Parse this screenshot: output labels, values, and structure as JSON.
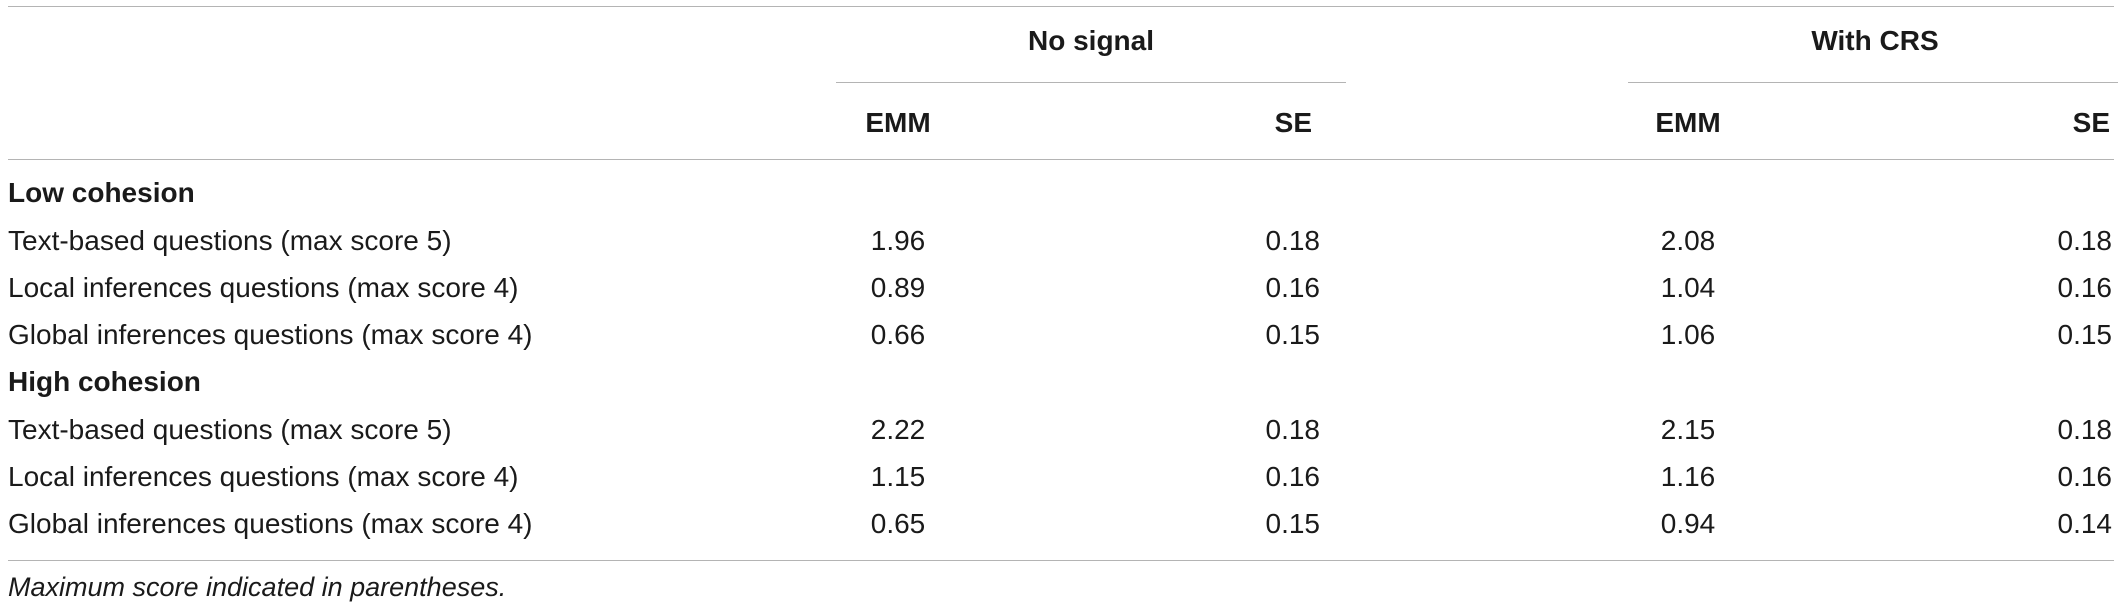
{
  "table": {
    "group_headers": [
      "No signal",
      "With CRS"
    ],
    "sub_headers": [
      "EMM",
      "SE",
      "EMM",
      "SE"
    ],
    "sections": [
      {
        "title": "Low cohesion",
        "rows": [
          {
            "label": "Text-based questions (max score 5)",
            "values": [
              "1.96",
              "0.18",
              "2.08",
              "0.18"
            ]
          },
          {
            "label": "Local inferences questions (max score 4)",
            "values": [
              "0.89",
              "0.16",
              "1.04",
              "0.16"
            ]
          },
          {
            "label": "Global inferences questions (max score 4)",
            "values": [
              "0.66",
              "0.15",
              "1.06",
              "0.15"
            ]
          }
        ]
      },
      {
        "title": "High cohesion",
        "rows": [
          {
            "label": "Text-based questions (max score 5)",
            "values": [
              "2.22",
              "0.18",
              "2.15",
              "0.18"
            ]
          },
          {
            "label": "Local inferences questions (max score 4)",
            "values": [
              "1.15",
              "0.16",
              "1.16",
              "0.16"
            ]
          },
          {
            "label": "Global inferences questions (max score 4)",
            "values": [
              "0.65",
              "0.15",
              "0.94",
              "0.14"
            ]
          }
        ]
      }
    ],
    "footnote": "Maximum score indicated in parentheses."
  }
}
